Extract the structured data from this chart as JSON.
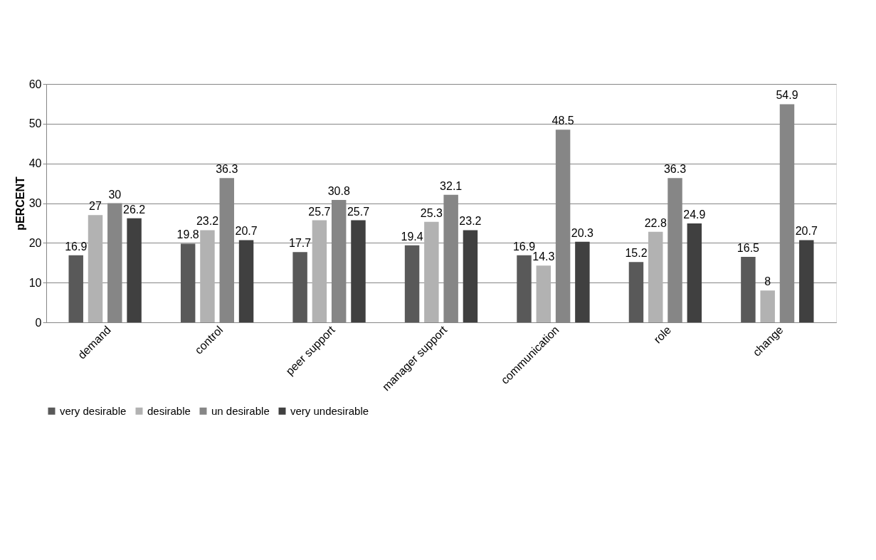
{
  "chart_data": {
    "type": "bar",
    "ylabel": "pERCENT",
    "categories": [
      "demand",
      "control",
      "peer support",
      "manager support",
      "communication",
      "role",
      "change"
    ],
    "series": [
      {
        "name": "very desirable",
        "color": "#595959",
        "values": [
          16.9,
          19.8,
          17.7,
          19.4,
          16.9,
          15.2,
          16.5
        ]
      },
      {
        "name": "desirable",
        "color": "#b2b2b2",
        "values": [
          27,
          23.2,
          25.7,
          25.3,
          14.3,
          22.8,
          8
        ]
      },
      {
        "name": "un desirable",
        "color": "#868686",
        "values": [
          30,
          36.3,
          30.8,
          32.1,
          48.5,
          36.3,
          54.9
        ]
      },
      {
        "name": "very undesirable",
        "color": "#404040",
        "values": [
          26.2,
          20.7,
          25.7,
          23.2,
          20.3,
          24.9,
          20.7
        ]
      }
    ],
    "ylim": [
      0,
      60
    ],
    "yticks": [
      0,
      10,
      20,
      30,
      40,
      50,
      60
    ],
    "grid": "y",
    "legend": "bottom",
    "data_labels": true
  }
}
